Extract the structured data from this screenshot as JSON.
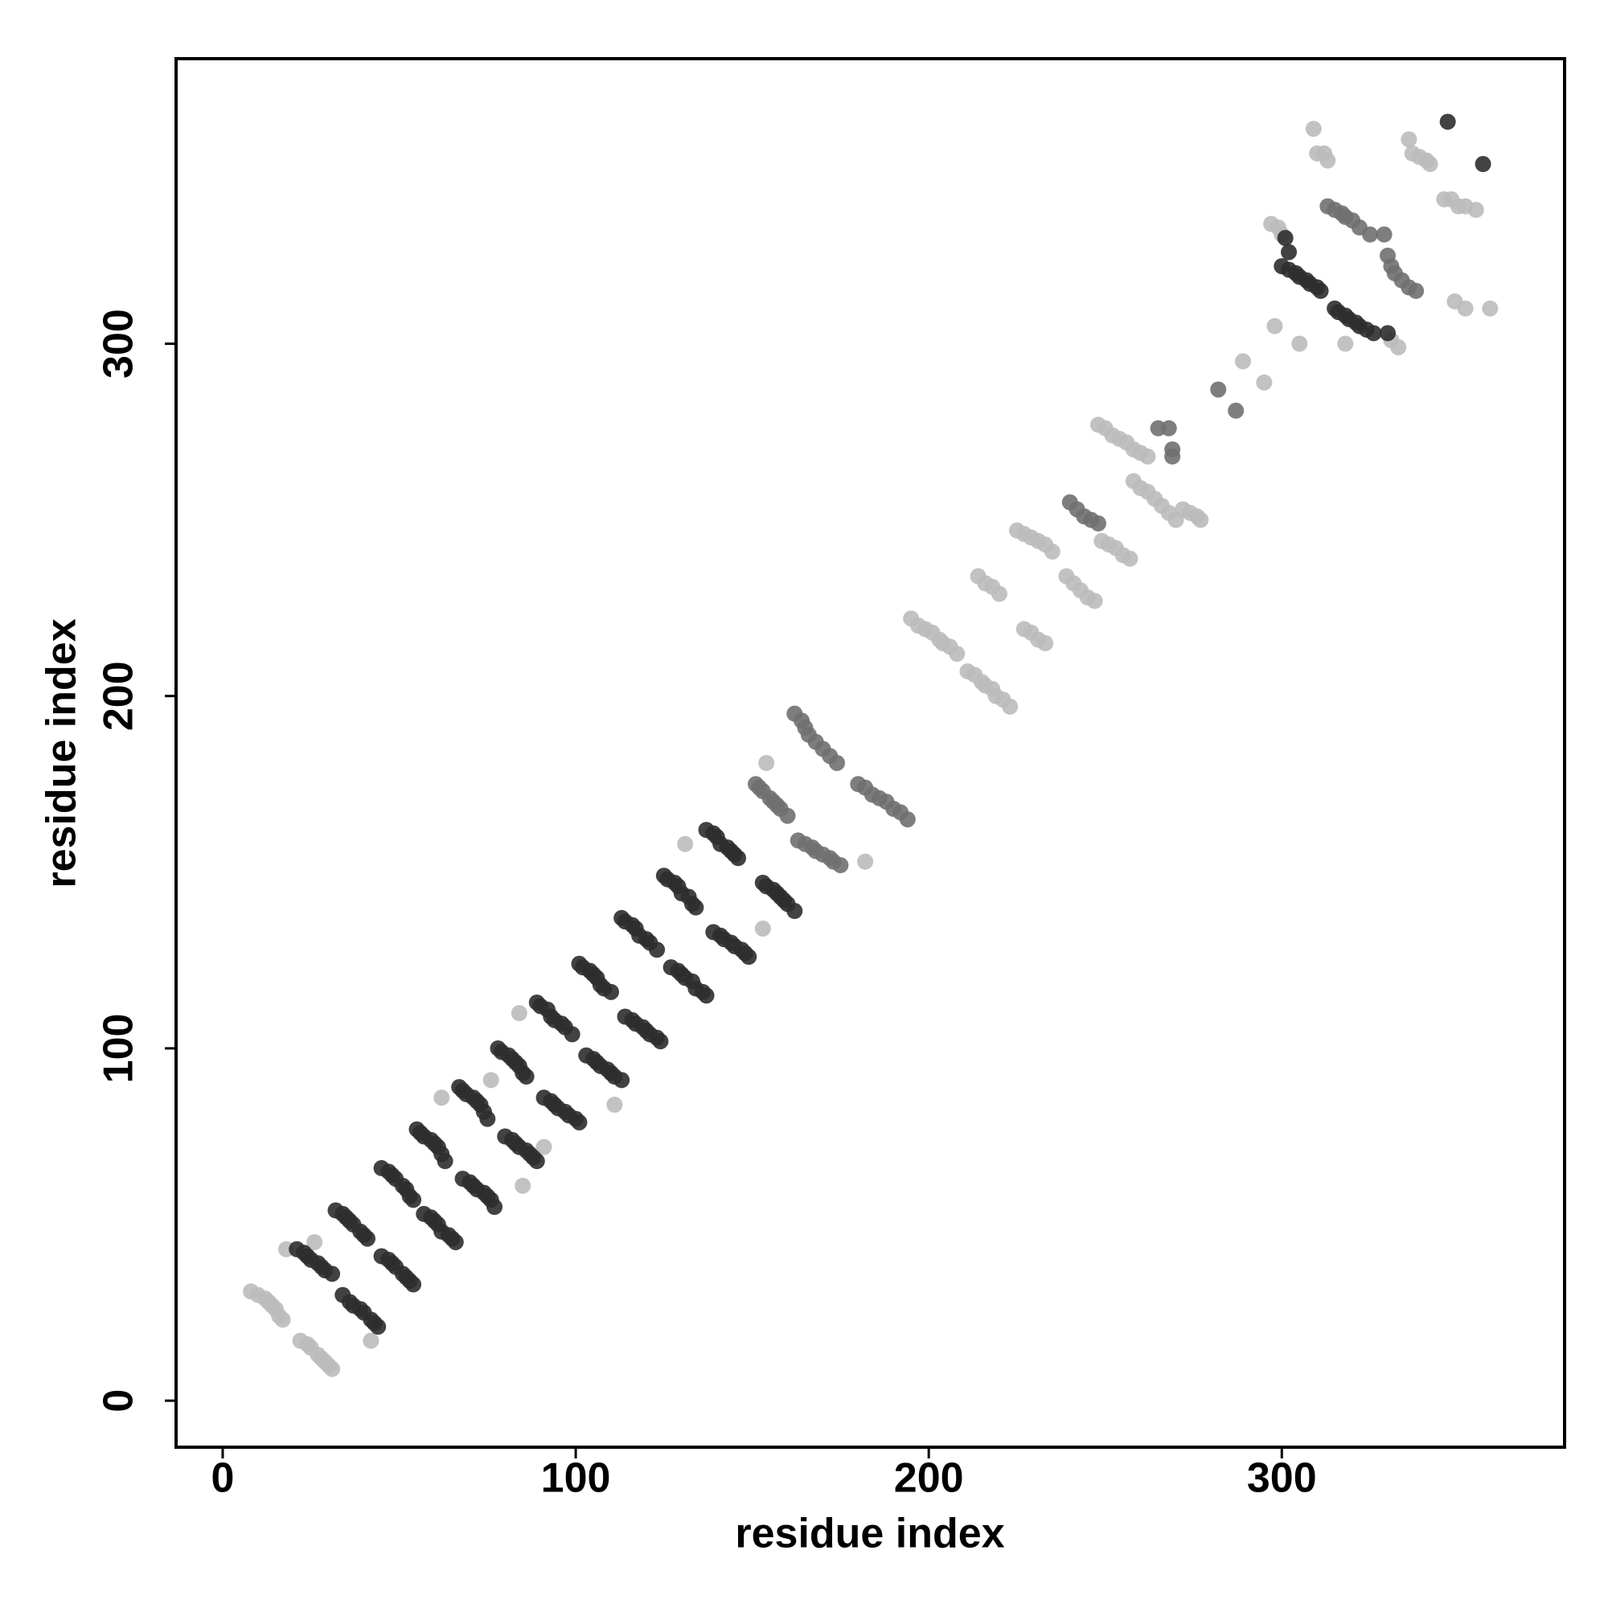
{
  "chart_data": {
    "type": "scatter",
    "xlabel": "residue index",
    "ylabel": "residue index",
    "xlim": [
      -13.2,
      380.1
    ],
    "ylim": [
      -13.2,
      380.9
    ],
    "xticks": [
      0,
      100,
      200,
      300
    ],
    "yticks": [
      0,
      100,
      200,
      300
    ],
    "grid": false,
    "series": [
      {
        "color": "#bbbbbb",
        "x": [
          8,
          10,
          12,
          13,
          14,
          15,
          16,
          17,
          22,
          24,
          25,
          27,
          28,
          29,
          30,
          31,
          195,
          197,
          199,
          201,
          203,
          204,
          206,
          208,
          211,
          213,
          215,
          216,
          218,
          219,
          221,
          223,
          214,
          216,
          218,
          220,
          225,
          227,
          229,
          231,
          233,
          235,
          227,
          229,
          231,
          233,
          239,
          241,
          243,
          245,
          247,
          249,
          251,
          253,
          255,
          257,
          248,
          250,
          252,
          254,
          256,
          258,
          260,
          262,
          258,
          260,
          262,
          264,
          266,
          268,
          270,
          272,
          274,
          276,
          277,
          289,
          295,
          297,
          299,
          300,
          298,
          305,
          309,
          310,
          312,
          313,
          318,
          331,
          333,
          336,
          337,
          339,
          341,
          342,
          346,
          348,
          350,
          352,
          355,
          349,
          352,
          359,
          18,
          26,
          42,
          62,
          76,
          84,
          85,
          91,
          111,
          131,
          153,
          154,
          182
        ],
        "values": [
          31,
          30,
          29,
          28,
          27,
          26,
          24,
          23,
          17,
          16,
          15,
          13,
          12,
          11,
          10,
          9,
          222,
          220,
          219,
          218,
          216,
          215,
          214,
          212,
          207,
          206,
          204,
          203,
          202,
          200,
          199,
          197,
          234,
          232,
          231,
          229,
          247,
          246,
          245,
          244,
          243,
          241,
          219,
          218,
          216,
          215,
          234,
          232,
          230,
          228,
          227,
          244,
          243,
          242,
          240,
          239,
          277,
          276,
          274,
          273,
          272,
          270,
          269,
          268,
          261,
          259,
          258,
          256,
          254,
          252,
          250,
          253,
          252,
          251,
          250,
          295,
          289,
          334,
          333,
          331,
          305,
          300,
          361,
          354,
          354,
          352,
          300,
          301,
          299,
          358,
          354,
          353,
          352,
          351,
          341,
          341,
          339,
          339,
          338,
          312,
          310,
          310,
          43,
          45,
          17,
          86,
          91,
          110,
          61,
          72,
          84,
          158,
          134,
          181,
          153
        ]
      },
      {
        "color": "#707070",
        "x": [
          151,
          152,
          153,
          155,
          156,
          157,
          158,
          160,
          163,
          165,
          167,
          168,
          170,
          172,
          173,
          175,
          162,
          164,
          165,
          166,
          168,
          170,
          172,
          174,
          180,
          182,
          184,
          186,
          188,
          190,
          192,
          194,
          240,
          242,
          244,
          246,
          248,
          265,
          268,
          269,
          269,
          282,
          287,
          313,
          315,
          317,
          318,
          320,
          322,
          325,
          329,
          330,
          331,
          332,
          334,
          336,
          338
        ],
        "values": [
          175,
          174,
          173,
          171,
          170,
          169,
          168,
          166,
          159,
          158,
          157,
          156,
          155,
          154,
          153,
          152,
          195,
          193,
          191,
          189,
          187,
          185,
          183,
          181,
          175,
          174,
          172,
          171,
          170,
          168,
          167,
          165,
          255,
          253,
          251,
          250,
          249,
          276,
          276,
          270,
          268,
          287,
          281,
          339,
          338,
          337,
          336,
          335,
          333,
          331,
          331,
          325,
          322,
          320,
          318,
          316,
          315
        ]
      },
      {
        "color": "#2e2e2e",
        "x": [
          21,
          23,
          24,
          25,
          27,
          28,
          29,
          31,
          34,
          36,
          37,
          39,
          40,
          42,
          43,
          44,
          32,
          34,
          35,
          36,
          37,
          39,
          40,
          41,
          45,
          47,
          48,
          49,
          51,
          52,
          53,
          54,
          45,
          47,
          48,
          49,
          51,
          52,
          53,
          54,
          57,
          59,
          60,
          61,
          62,
          64,
          65,
          66,
          55,
          56,
          57,
          59,
          60,
          61,
          62,
          63,
          68,
          70,
          71,
          72,
          74,
          75,
          76,
          77,
          67,
          68,
          69,
          71,
          72,
          73,
          74,
          75,
          80,
          82,
          83,
          84,
          86,
          87,
          88,
          89,
          78,
          79,
          81,
          82,
          83,
          84,
          85,
          86,
          91,
          93,
          94,
          95,
          97,
          98,
          100,
          101,
          89,
          90,
          92,
          93,
          94,
          96,
          97,
          99,
          103,
          105,
          106,
          107,
          109,
          110,
          111,
          113,
          101,
          102,
          104,
          105,
          106,
          107,
          108,
          110,
          114,
          116,
          117,
          119,
          120,
          121,
          123,
          124,
          113,
          114,
          116,
          117,
          118,
          120,
          121,
          123,
          127,
          129,
          130,
          131,
          133,
          134,
          136,
          137,
          125,
          126,
          128,
          129,
          130,
          132,
          133,
          134,
          139,
          141,
          142,
          144,
          145,
          147,
          148,
          149,
          137,
          139,
          140,
          141,
          143,
          144,
          145,
          146,
          153,
          154,
          156,
          157,
          158,
          159,
          160,
          162,
          300,
          302,
          304,
          305,
          307,
          308,
          310,
          311,
          301,
          302,
          315,
          316,
          318,
          319,
          321,
          322,
          324,
          326,
          330,
          347,
          357
        ],
        "values": [
          43,
          42,
          41,
          40,
          39,
          38,
          37,
          36,
          30,
          28,
          27,
          26,
          25,
          23,
          22,
          21,
          54,
          53,
          52,
          51,
          50,
          48,
          47,
          46,
          41,
          40,
          39,
          38,
          36,
          35,
          34,
          33,
          66,
          65,
          64,
          63,
          61,
          60,
          58,
          57,
          53,
          52,
          51,
          50,
          48,
          47,
          46,
          45,
          77,
          76,
          75,
          74,
          73,
          72,
          70,
          68,
          63,
          62,
          61,
          60,
          59,
          58,
          57,
          55,
          89,
          88,
          87,
          86,
          85,
          84,
          82,
          80,
          75,
          74,
          73,
          72,
          71,
          70,
          69,
          68,
          100,
          99,
          98,
          97,
          96,
          95,
          93,
          92,
          86,
          85,
          84,
          83,
          82,
          81,
          80,
          79,
          113,
          112,
          111,
          109,
          108,
          107,
          106,
          104,
          98,
          97,
          96,
          95,
          94,
          93,
          92,
          91,
          124,
          123,
          122,
          121,
          120,
          118,
          117,
          116,
          109,
          108,
          107,
          106,
          105,
          104,
          103,
          102,
          137,
          136,
          135,
          134,
          132,
          131,
          130,
          128,
          123,
          122,
          121,
          120,
          119,
          117,
          116,
          115,
          149,
          148,
          147,
          146,
          144,
          143,
          141,
          140,
          133,
          132,
          131,
          130,
          129,
          128,
          127,
          126,
          162,
          161,
          160,
          158,
          157,
          156,
          155,
          154,
          147,
          146,
          145,
          144,
          143,
          142,
          141,
          139,
          322,
          321,
          320,
          319,
          318,
          317,
          316,
          315,
          330,
          326,
          310,
          309,
          308,
          307,
          306,
          305,
          304,
          303,
          303,
          363,
          351
        ]
      }
    ]
  }
}
